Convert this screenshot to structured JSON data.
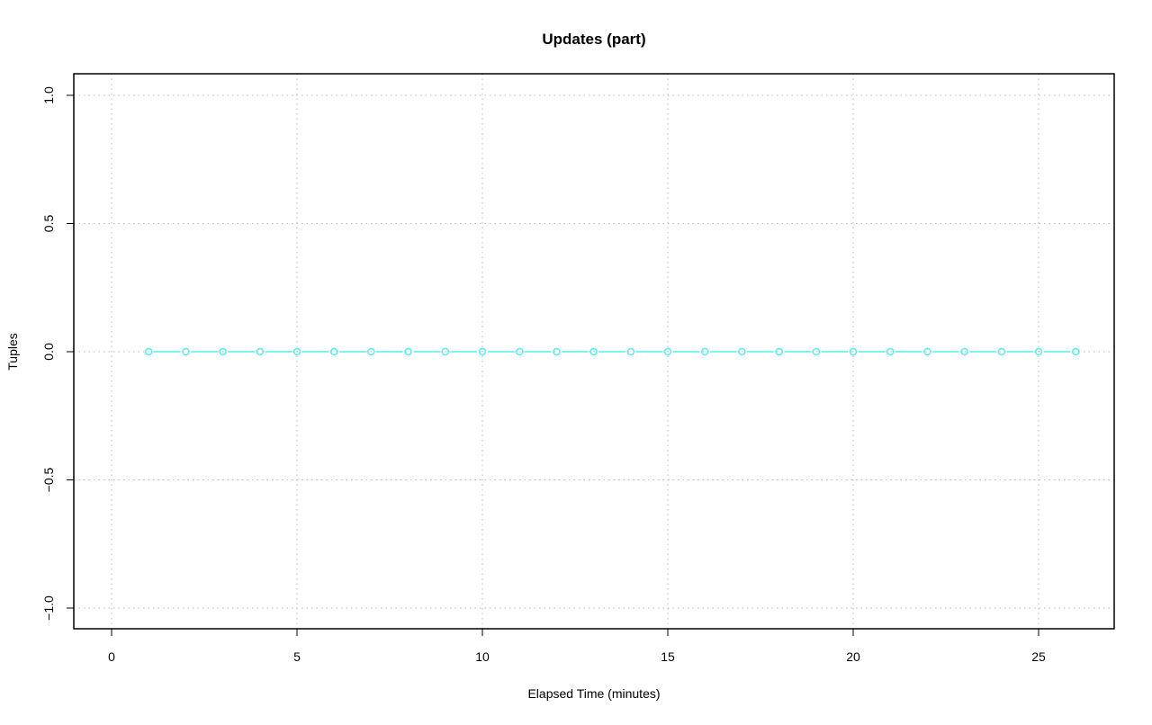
{
  "chart_data": {
    "type": "line",
    "title": "Updates (part)",
    "xlabel": "Elapsed Time (minutes)",
    "ylabel": "Tuples",
    "xlim": [
      -1,
      27.1
    ],
    "ylim": [
      -1.08,
      1.08
    ],
    "xticks": [
      0,
      5,
      10,
      15,
      20,
      25
    ],
    "yticks": [
      -1.0,
      -0.5,
      0.0,
      0.5,
      1.0
    ],
    "xtick_labels": [
      "0",
      "5",
      "10",
      "15",
      "20",
      "25"
    ],
    "ytick_labels": [
      "−1.0",
      "−0.5",
      "0.0",
      "0.5",
      "1.0"
    ],
    "grid": true,
    "series": [
      {
        "color": "#55eeee",
        "marker": "open-circle",
        "x": [
          1,
          2,
          3,
          4,
          5,
          6,
          7,
          8,
          9,
          10,
          11,
          12,
          13,
          14,
          15,
          16,
          17,
          18,
          19,
          20,
          21,
          22,
          23,
          24,
          25,
          26
        ],
        "y": [
          0,
          0,
          0,
          0,
          0,
          0,
          0,
          0,
          0,
          0,
          0,
          0,
          0,
          0,
          0,
          0,
          0,
          0,
          0,
          0,
          0,
          0,
          0,
          0,
          0,
          0
        ]
      }
    ]
  }
}
